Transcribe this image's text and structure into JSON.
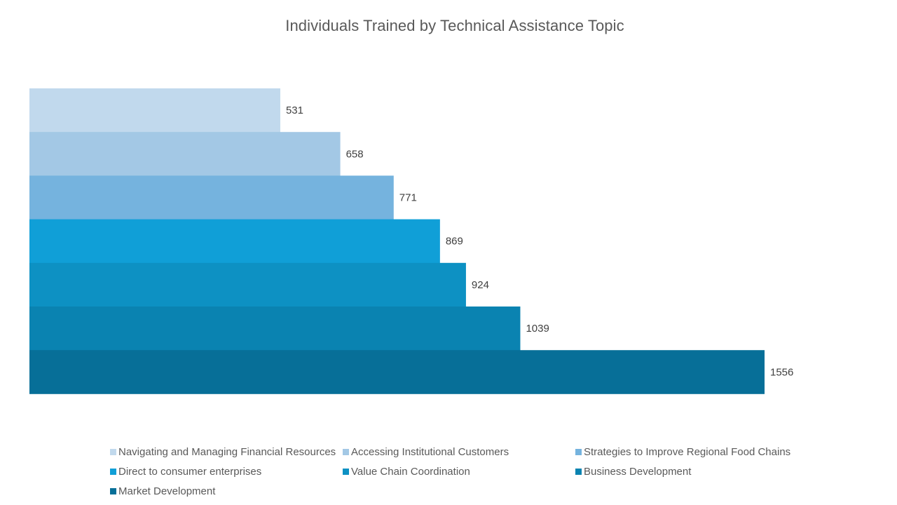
{
  "chart_data": {
    "type": "bar",
    "orientation": "horizontal",
    "title": "Individuals Trained by Technical Assistance Topic",
    "xlabel": "",
    "ylabel": "",
    "xlim": [
      0,
      1600
    ],
    "grid": false,
    "legend_position": "bottom",
    "data_labels": true,
    "series": [
      {
        "name": "Navigating and Managing Financial Resources",
        "value": 531,
        "color": "#c1d9ed"
      },
      {
        "name": "Accessing Institutional Customers",
        "value": 658,
        "color": "#a3c8e5"
      },
      {
        "name": "Strategies to Improve Regional Food Chains",
        "value": 771,
        "color": "#75b3de"
      },
      {
        "name": "Direct to consumer enterprises",
        "value": 869,
        "color": "#109fd7"
      },
      {
        "name": "Value Chain Coordination",
        "value": 924,
        "color": "#0d91c3"
      },
      {
        "name": "Business Development",
        "value": 1039,
        "color": "#0a83b1"
      },
      {
        "name": "Market Development",
        "value": 1556,
        "color": "#076f98"
      }
    ]
  }
}
